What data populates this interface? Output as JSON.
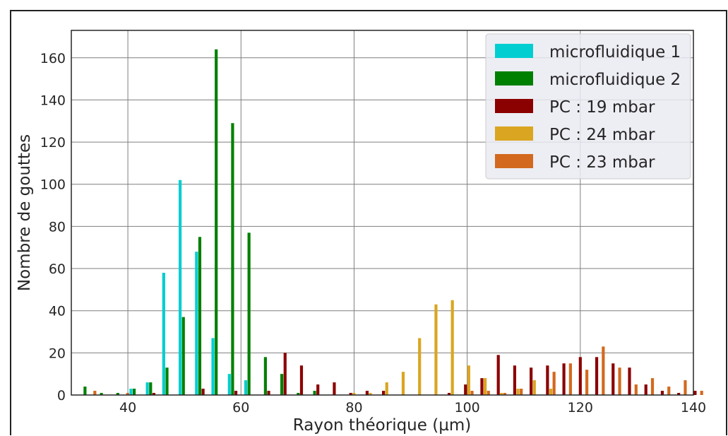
{
  "chart_data": {
    "type": "bar",
    "xlabel": "Rayon théorique (µm)",
    "ylabel": "Nombre de gouttes",
    "xlim": [
      30,
      140
    ],
    "ylim": [
      0,
      173
    ],
    "xticks": [
      40,
      60,
      80,
      100,
      120,
      140
    ],
    "yticks": [
      0,
      20,
      40,
      60,
      80,
      100,
      120,
      140,
      160
    ],
    "grid": true,
    "legend_position": "top-right",
    "series": [
      {
        "name": "microfluidique 1",
        "color": "#00CED1",
        "points": [
          {
            "x": 33.0,
            "y": 0
          },
          {
            "x": 35.9,
            "y": 0
          },
          {
            "x": 38.8,
            "y": 0
          },
          {
            "x": 41.7,
            "y": 3
          },
          {
            "x": 44.6,
            "y": 6
          },
          {
            "x": 47.5,
            "y": 58
          },
          {
            "x": 50.4,
            "y": 102
          },
          {
            "x": 53.3,
            "y": 68
          },
          {
            "x": 56.2,
            "y": 27
          },
          {
            "x": 59.1,
            "y": 10
          },
          {
            "x": 62.0,
            "y": 7
          }
        ]
      },
      {
        "name": "microfluidique 2",
        "color": "#008000",
        "points": [
          {
            "x": 33.0,
            "y": 4
          },
          {
            "x": 35.9,
            "y": 1
          },
          {
            "x": 38.8,
            "y": 1
          },
          {
            "x": 41.7,
            "y": 3
          },
          {
            "x": 44.6,
            "y": 6
          },
          {
            "x": 47.5,
            "y": 13
          },
          {
            "x": 50.4,
            "y": 37
          },
          {
            "x": 53.3,
            "y": 75
          },
          {
            "x": 56.2,
            "y": 164
          },
          {
            "x": 59.1,
            "y": 129
          },
          {
            "x": 62.0,
            "y": 77
          },
          {
            "x": 64.9,
            "y": 18
          },
          {
            "x": 67.8,
            "y": 10
          },
          {
            "x": 70.7,
            "y": 1
          },
          {
            "x": 73.6,
            "y": 2
          }
        ]
      },
      {
        "name": "PC : 19 mbar",
        "color": "#8B0000",
        "points": [
          {
            "x": 44.6,
            "y": 1
          },
          {
            "x": 53.3,
            "y": 3
          },
          {
            "x": 59.1,
            "y": 2
          },
          {
            "x": 64.9,
            "y": 2
          },
          {
            "x": 67.8,
            "y": 20
          },
          {
            "x": 70.7,
            "y": 14
          },
          {
            "x": 73.6,
            "y": 5
          },
          {
            "x": 76.5,
            "y": 6
          },
          {
            "x": 79.4,
            "y": 1
          },
          {
            "x": 82.3,
            "y": 2
          },
          {
            "x": 85.2,
            "y": 2
          },
          {
            "x": 96.8,
            "y": 1
          },
          {
            "x": 99.7,
            "y": 5
          },
          {
            "x": 102.6,
            "y": 8
          },
          {
            "x": 105.5,
            "y": 19
          },
          {
            "x": 108.4,
            "y": 14
          },
          {
            "x": 111.3,
            "y": 13
          },
          {
            "x": 114.2,
            "y": 14
          },
          {
            "x": 117.1,
            "y": 15
          },
          {
            "x": 120.0,
            "y": 18
          },
          {
            "x": 122.9,
            "y": 18
          },
          {
            "x": 125.8,
            "y": 15
          },
          {
            "x": 128.7,
            "y": 13
          },
          {
            "x": 131.6,
            "y": 5
          },
          {
            "x": 134.5,
            "y": 2
          },
          {
            "x": 137.4,
            "y": 1
          },
          {
            "x": 140.3,
            "y": 2
          }
        ]
      },
      {
        "name": "PC : 24 mbar",
        "color": "#DAA520",
        "points": [
          {
            "x": 79.4,
            "y": 1
          },
          {
            "x": 82.3,
            "y": 1
          },
          {
            "x": 85.2,
            "y": 6
          },
          {
            "x": 88.1,
            "y": 11
          },
          {
            "x": 91.0,
            "y": 27
          },
          {
            "x": 93.9,
            "y": 43
          },
          {
            "x": 96.8,
            "y": 45
          },
          {
            "x": 99.7,
            "y": 14
          },
          {
            "x": 102.6,
            "y": 8
          },
          {
            "x": 105.5,
            "y": 1
          },
          {
            "x": 108.4,
            "y": 3
          },
          {
            "x": 111.3,
            "y": 7
          },
          {
            "x": 114.2,
            "y": 3
          }
        ]
      },
      {
        "name": "PC : 23 mbar",
        "color": "#D2691E",
        "points": [
          {
            "x": 33.0,
            "y": 2
          },
          {
            "x": 35.9,
            "y": 0
          },
          {
            "x": 38.8,
            "y": 1
          },
          {
            "x": 99.7,
            "y": 2
          },
          {
            "x": 102.6,
            "y": 2
          },
          {
            "x": 105.5,
            "y": 1
          },
          {
            "x": 108.4,
            "y": 3
          },
          {
            "x": 114.2,
            "y": 11
          },
          {
            "x": 117.1,
            "y": 15
          },
          {
            "x": 120.0,
            "y": 12
          },
          {
            "x": 122.9,
            "y": 23
          },
          {
            "x": 125.8,
            "y": 13
          },
          {
            "x": 128.7,
            "y": 5
          },
          {
            "x": 131.6,
            "y": 8
          },
          {
            "x": 134.5,
            "y": 4
          },
          {
            "x": 137.4,
            "y": 7
          },
          {
            "x": 140.3,
            "y": 2
          }
        ]
      }
    ]
  }
}
